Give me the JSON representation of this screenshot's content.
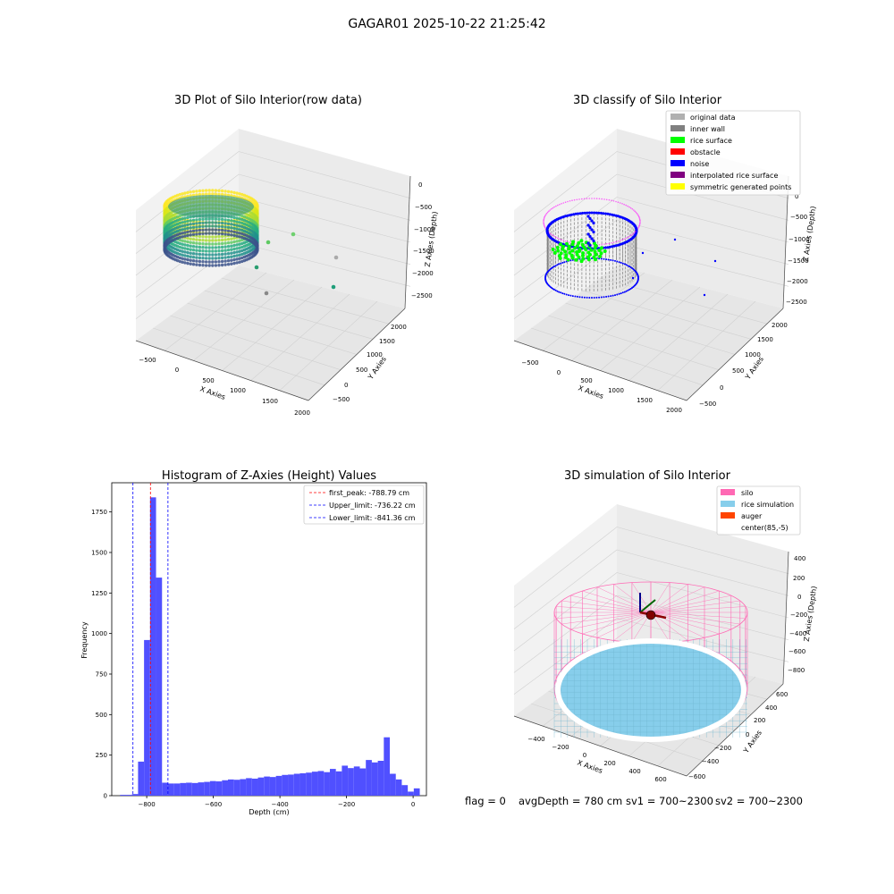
{
  "suptitle": "GAGAR01 2025-10-22 21:25:42",
  "status": {
    "flag": "flag = 0",
    "avg_depth": "avgDepth = 780 cm",
    "sv1": "sv1 = 700~2300",
    "sv2": "sv2 = 700~2300"
  },
  "colors": {
    "histogram_bar": "#5050ff",
    "first_peak_line": "#ff0000",
    "limit_line": "#0000ff",
    "silo": "#ff69b4",
    "rice_simulation": "#87ceeb",
    "auger": "#ff4500",
    "rice_surface": "#00ff00",
    "noise": "#0000ff",
    "inner_wall": "#808080",
    "original_data": "#b0b0b0",
    "obstacle": "#ff0000",
    "interpolated_rice_surface": "#800080",
    "symmetric_generated_points": "#ffff00"
  },
  "chart_data": [
    {
      "type": "scatter3d",
      "title": "3D Plot of Silo Interior(row data)",
      "xlabel": "X Axies",
      "ylabel": "Y Axies",
      "zlabel": "Z Axies (Depth)",
      "x_ticks": [
        "−500",
        "0",
        "500",
        "1000",
        "1500",
        "2000"
      ],
      "y_ticks": [
        "−500",
        "0",
        "500",
        "1000",
        "1500",
        "2000"
      ],
      "z_ticks": [
        "0",
        "−500",
        "−1000",
        "−1500",
        "−2000",
        "−2500"
      ],
      "xlim": [
        -700,
        2000
      ],
      "ylim": [
        -700,
        2200
      ],
      "zlim": [
        -2700,
        100
      ],
      "colormap": "viridis"
    },
    {
      "type": "scatter3d",
      "title": "3D classify of Silo Interior",
      "xlabel": "X Axies",
      "ylabel": "Y Axies",
      "zlabel": "Z Axies (Depth)",
      "x_ticks": [
        "−500",
        "0",
        "500",
        "1000",
        "1500",
        "2000"
      ],
      "y_ticks": [
        "−500",
        "0",
        "500",
        "1000",
        "1500",
        "2000"
      ],
      "z_ticks": [
        "0",
        "−500",
        "−1000",
        "−1500",
        "−2000",
        "−2500"
      ],
      "legend": [
        {
          "label": "original data",
          "color": "#b0b0b0"
        },
        {
          "label": "inner wall",
          "color": "#808080"
        },
        {
          "label": "rice surface",
          "color": "#00ff00"
        },
        {
          "label": "obstacle",
          "color": "#ff0000"
        },
        {
          "label": "noise",
          "color": "#0000ff"
        },
        {
          "label": "interpolated rice surface",
          "color": "#800080"
        },
        {
          "label": "symmetric generated points",
          "color": "#ffff00"
        }
      ],
      "legend_position": "top-right"
    },
    {
      "type": "bar",
      "title": "Histogram of Z-Axies (Height) Values",
      "xlabel": "Depth (cm)",
      "ylabel": "Frequency",
      "xlim": [
        -905,
        40
      ],
      "ylim": [
        0,
        1930
      ],
      "x_ticks": [
        -800,
        -600,
        -400,
        -200,
        0
      ],
      "x_tick_labels": [
        "−800",
        "−600",
        "−400",
        "−200",
        "0"
      ],
      "y_ticks": [
        0,
        250,
        500,
        750,
        1000,
        1250,
        1500,
        1750
      ],
      "bin_start": -880,
      "bin_width": 18,
      "values": [
        5,
        5,
        10,
        210,
        960,
        1840,
        1345,
        80,
        75,
        75,
        78,
        80,
        78,
        82,
        85,
        90,
        88,
        95,
        100,
        98,
        102,
        108,
        105,
        112,
        118,
        115,
        122,
        128,
        130,
        135,
        138,
        142,
        148,
        152,
        145,
        165,
        150,
        185,
        170,
        180,
        168,
        220,
        205,
        215,
        360,
        135,
        100,
        65,
        25,
        45
      ],
      "vlines": [
        {
          "x": -788.79,
          "label": "first_peak: -788.79 cm",
          "color": "#ff0000"
        },
        {
          "x": -736.22,
          "label": "Upper_limit: -736.22 cm",
          "color": "#0000ff"
        },
        {
          "x": -841.36,
          "label": "Lower_limit: -841.36 cm",
          "color": "#0000ff"
        }
      ],
      "legend_position": "top-right"
    },
    {
      "type": "surface3d",
      "title": "3D simulation of Silo Interior",
      "xlabel": "X Axies",
      "ylabel": "Y Axies",
      "zlabel": "Z Axies (Depth)",
      "x_ticks": [
        "−400",
        "−200",
        "0",
        "200",
        "400",
        "600"
      ],
      "y_ticks": [
        "−600",
        "−400",
        "−200",
        "0",
        "200",
        "400",
        "600"
      ],
      "z_ticks": [
        "400",
        "200",
        "0",
        "−200",
        "−400",
        "−600",
        "−800"
      ],
      "legend": [
        {
          "label": "silo",
          "color": "#ff69b4"
        },
        {
          "label": "rice simulation",
          "color": "#87ceeb"
        },
        {
          "label": "auger",
          "color": "#ff4500"
        },
        {
          "label": "center(85,-5)",
          "color": "none"
        }
      ],
      "legend_position": "top-right"
    }
  ]
}
